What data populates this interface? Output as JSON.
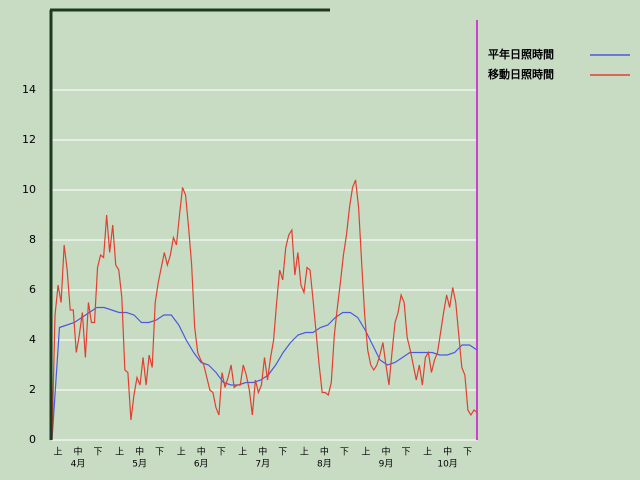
{
  "chart_data": {
    "type": "line",
    "ylim": [
      0,
      17.2
    ],
    "yticks": [
      0,
      2,
      4,
      6,
      8,
      10,
      12,
      14
    ],
    "grid": true,
    "x_tick_labels": [
      "上",
      "中",
      "下",
      "上",
      "中",
      "下",
      "上",
      "中",
      "下",
      "上",
      "中",
      "下",
      "上",
      "中",
      "下",
      "上",
      "中",
      "下",
      "上",
      "中",
      "下"
    ],
    "month_labels": [
      "4月",
      "5月",
      "6月",
      "7月",
      "8月",
      "9月",
      "10月"
    ],
    "series": [
      {
        "name": "平年日照時間",
        "color": "#4a5ae0",
        "values": [
          0,
          4.5,
          4.6,
          4.7,
          4.9,
          5.1,
          5.3,
          5.3,
          5.2,
          5.1,
          5.1,
          5.0,
          4.7,
          4.7,
          4.8,
          5.0,
          5.0,
          4.6,
          4.0,
          3.5,
          3.1,
          3.0,
          2.7,
          2.3,
          2.2,
          2.2,
          2.3,
          2.3,
          2.4,
          2.6,
          3.0,
          3.5,
          3.9,
          4.2,
          4.3,
          4.3,
          4.5,
          4.6,
          4.9,
          5.1,
          5.1,
          4.9,
          4.4,
          3.8,
          3.2,
          3.0,
          3.1,
          3.3,
          3.5,
          3.5,
          3.5,
          3.5,
          3.4,
          3.4,
          3.5,
          3.8,
          3.8,
          3.6
        ]
      },
      {
        "name": "移動日照時間",
        "color": "#e04030",
        "values": [
          0,
          5,
          6.2,
          5.5,
          7.8,
          6.8,
          5.2,
          5.2,
          3.5,
          4.2,
          5.1,
          3.3,
          5.5,
          4.7,
          4.7,
          6.9,
          7.4,
          7.3,
          9.0,
          7.5,
          8.6,
          7.0,
          6.8,
          5.7,
          2.8,
          2.7,
          0.8,
          1.8,
          2.5,
          2.2,
          3.3,
          2.2,
          3.4,
          2.9,
          5.5,
          6.3,
          6.9,
          7.5,
          7.0,
          7.4,
          8.1,
          7.8,
          9.0,
          10.1,
          9.8,
          8.5,
          7.0,
          4.5,
          3.5,
          3.2,
          3.0,
          2.5,
          2.0,
          1.9,
          1.3,
          1.0,
          2.7,
          2.1,
          2.5,
          3.0,
          2.1,
          2.2,
          2.2,
          3.0,
          2.6,
          2.0,
          1.0,
          2.4,
          1.9,
          2.2,
          3.3,
          2.4,
          3.3,
          4.0,
          5.5,
          6.8,
          6.4,
          7.7,
          8.2,
          8.4,
          6.6,
          7.5,
          6.2,
          5.9,
          6.9,
          6.8,
          5.6,
          4.3,
          3.0,
          1.9,
          1.9,
          1.8,
          2.3,
          4.2,
          5.3,
          6.3,
          7.4,
          8.2,
          9.3,
          10.1,
          10.4,
          9.3,
          7.1,
          5.0,
          3.6,
          3.0,
          2.8,
          3.0,
          3.4,
          3.9,
          3.0,
          2.2,
          3.5,
          4.7,
          5.1,
          5.8,
          5.5,
          4.1,
          3.6,
          3.0,
          2.4,
          3.0,
          2.2,
          3.3,
          3.5,
          2.7,
          3.2,
          3.5,
          4.3,
          5.1,
          5.8,
          5.3,
          6.1,
          5.5,
          4.2,
          2.9,
          2.6,
          1.2,
          1.0,
          1.2,
          1.1
        ]
      }
    ]
  }
}
